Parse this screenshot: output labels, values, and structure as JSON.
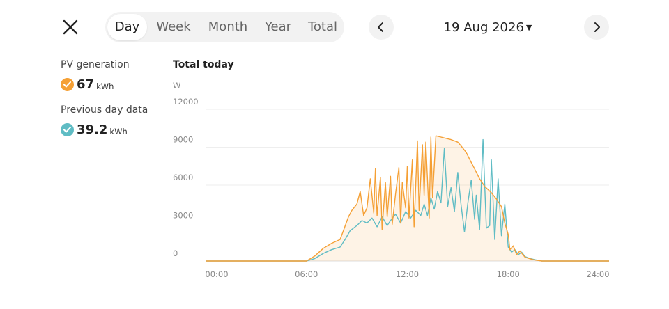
{
  "header": {
    "tabs": [
      {
        "label": "Day",
        "active": true
      },
      {
        "label": "Week",
        "active": false
      },
      {
        "label": "Month",
        "active": false
      },
      {
        "label": "Year",
        "active": false
      },
      {
        "label": "Total",
        "active": false
      }
    ],
    "date": "19 Aug 2026",
    "icons": {
      "close": "close-icon",
      "prev": "chevron-left-icon",
      "next": "chevron-right-icon",
      "date_caret": "caret-down-icon"
    }
  },
  "summary": {
    "pv": {
      "label": "PV generation",
      "value": "67",
      "unit": "kWh",
      "color": "#f5a035"
    },
    "prev": {
      "label": "Previous day data",
      "value": "39.2",
      "unit": "kWh",
      "color": "#5fbcc4"
    }
  },
  "chart_data": {
    "type": "line",
    "title": "Total today",
    "ylabel": "W",
    "ylim": [
      0,
      12000
    ],
    "yticks": [
      0,
      3000,
      6000,
      9000,
      12000
    ],
    "xlim": [
      0,
      24
    ],
    "xticks": [
      "00:00",
      "06:00",
      "12:00",
      "18:00",
      "24:00"
    ],
    "grid": true,
    "series": [
      {
        "key": "pv",
        "color": "#f5a035",
        "fill": true,
        "x": [
          0,
          6,
          6.5,
          7,
          7.5,
          8,
          8.2,
          8.5,
          8.7,
          9,
          9.2,
          9.4,
          9.6,
          9.8,
          10,
          10.1,
          10.2,
          10.4,
          10.5,
          10.7,
          10.8,
          11,
          11.1,
          11.3,
          11.5,
          11.6,
          11.7,
          11.9,
          12,
          12.1,
          12.3,
          12.4,
          12.6,
          12.7,
          12.9,
          13,
          13.1,
          13.3,
          13.4,
          13.5,
          13.7,
          14,
          14.3,
          14.6,
          15,
          15.2,
          15.5,
          15.8,
          16,
          16.3,
          16.6,
          17,
          17.3,
          17.6,
          17.8,
          18,
          18.1,
          18.3,
          18.5,
          18.7,
          19,
          19.5,
          20,
          20.5,
          21,
          24
        ],
        "y": [
          0,
          0,
          400,
          1000,
          1400,
          1700,
          2400,
          3500,
          4000,
          4500,
          5500,
          3600,
          4200,
          6500,
          3800,
          7300,
          3600,
          6600,
          2500,
          6200,
          3500,
          6700,
          2900,
          5300,
          7400,
          3000,
          6200,
          4200,
          7500,
          3400,
          8000,
          2700,
          9500,
          4000,
          9200,
          5200,
          9400,
          3400,
          9800,
          5000,
          9900,
          9800,
          9700,
          9600,
          9400,
          9100,
          8600,
          7800,
          7300,
          6500,
          5900,
          5400,
          4900,
          4300,
          3000,
          2100,
          900,
          1200,
          500,
          800,
          300,
          100,
          0,
          0,
          0,
          0
        ]
      },
      {
        "key": "prev",
        "color": "#5fbcc4",
        "fill": false,
        "x": [
          0,
          6,
          6.5,
          7,
          7.5,
          8,
          8.3,
          8.6,
          9,
          9.3,
          9.6,
          9.9,
          10.2,
          10.5,
          10.8,
          11,
          11.3,
          11.6,
          11.9,
          12.2,
          12.5,
          12.8,
          13,
          13.2,
          13.4,
          13.6,
          13.8,
          14,
          14.2,
          14.4,
          14.6,
          14.8,
          15,
          15.2,
          15.4,
          15.6,
          15.8,
          16,
          16.1,
          16.3,
          16.5,
          16.7,
          16.9,
          17,
          17.2,
          17.4,
          17.6,
          17.8,
          18,
          18.2,
          18.4,
          18.6,
          18.8,
          19,
          19.3,
          19.6,
          20,
          20.5,
          21,
          24
        ],
        "y": [
          0,
          0,
          200,
          600,
          900,
          1100,
          1700,
          2400,
          2800,
          3200,
          3000,
          3400,
          2700,
          3500,
          2800,
          3200,
          3700,
          3000,
          3900,
          3400,
          4000,
          3600,
          4500,
          3600,
          5000,
          4100,
          5500,
          4600,
          8900,
          4300,
          5800,
          3900,
          7000,
          4400,
          2300,
          4600,
          6400,
          3300,
          5200,
          2500,
          9600,
          2600,
          2800,
          8000,
          1700,
          6500,
          2000,
          4500,
          1100,
          700,
          900,
          500,
          700,
          350,
          200,
          100,
          0,
          0,
          0,
          0
        ]
      }
    ]
  }
}
